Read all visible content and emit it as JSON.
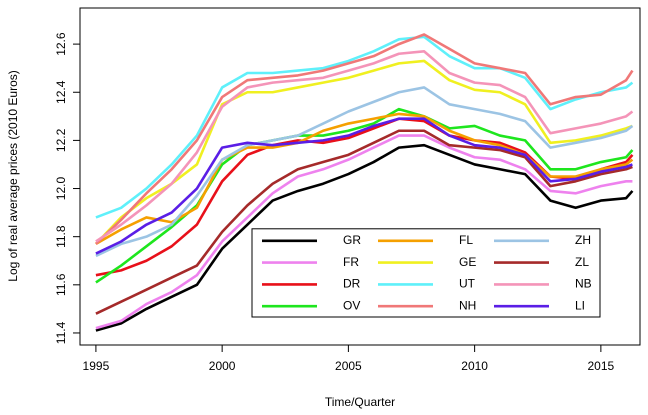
{
  "chart_data": {
    "type": "line",
    "x_label": "Time/Quarter",
    "y_label": "Log of real average prices (2010 Euros)",
    "x": [
      1995,
      1996,
      1997,
      1998,
      1999,
      2000,
      2001,
      2002,
      2003,
      2004,
      2005,
      2006,
      2007,
      2008,
      2009,
      2010,
      2011,
      2012,
      2013,
      2014,
      2015,
      2016,
      2016.25
    ],
    "series": [
      {
        "name": "GR",
        "color": "#000000",
        "values": [
          11.41,
          11.44,
          11.5,
          11.55,
          11.6,
          11.75,
          11.85,
          11.95,
          11.99,
          12.02,
          12.06,
          12.11,
          12.17,
          12.18,
          12.14,
          12.1,
          12.08,
          12.06,
          11.95,
          11.92,
          11.95,
          11.96,
          11.99
        ]
      },
      {
        "name": "FR",
        "color": "#ee82ee",
        "values": [
          11.42,
          11.45,
          11.52,
          11.57,
          11.64,
          11.78,
          11.88,
          11.98,
          12.05,
          12.08,
          12.12,
          12.17,
          12.22,
          12.22,
          12.17,
          12.13,
          12.12,
          12.08,
          11.99,
          11.98,
          12.01,
          12.03,
          12.03
        ]
      },
      {
        "name": "DR",
        "color": "#e8101a",
        "values": [
          11.64,
          11.66,
          11.7,
          11.76,
          11.85,
          12.03,
          12.14,
          12.18,
          12.2,
          12.19,
          12.21,
          12.25,
          12.29,
          12.28,
          12.22,
          12.2,
          12.19,
          12.15,
          12.05,
          12.04,
          12.08,
          12.11,
          12.14
        ]
      },
      {
        "name": "OV",
        "color": "#1ee61e",
        "values": [
          11.61,
          11.68,
          11.76,
          11.84,
          11.93,
          12.1,
          12.18,
          12.2,
          12.22,
          12.22,
          12.24,
          12.27,
          12.33,
          12.3,
          12.25,
          12.26,
          12.22,
          12.2,
          12.08,
          12.08,
          12.11,
          12.13,
          12.16
        ]
      },
      {
        "name": "FL",
        "color": "#f5a000",
        "values": [
          11.77,
          11.83,
          11.88,
          11.86,
          11.92,
          12.12,
          12.17,
          12.17,
          12.19,
          12.24,
          12.27,
          12.29,
          12.31,
          12.3,
          12.24,
          12.2,
          12.18,
          12.14,
          12.05,
          12.05,
          12.08,
          12.1,
          12.12
        ]
      },
      {
        "name": "GE",
        "color": "#f0f020",
        "values": [
          11.77,
          11.88,
          11.96,
          12.02,
          12.1,
          12.35,
          12.4,
          12.4,
          12.42,
          12.44,
          12.46,
          12.49,
          12.52,
          12.53,
          12.45,
          12.41,
          12.4,
          12.35,
          12.19,
          12.2,
          12.22,
          12.25,
          12.26
        ]
      },
      {
        "name": "UT",
        "color": "#5ff0fa",
        "values": [
          11.88,
          11.92,
          12.0,
          12.1,
          12.22,
          12.42,
          12.48,
          12.48,
          12.49,
          12.5,
          12.53,
          12.57,
          12.62,
          12.63,
          12.55,
          12.5,
          12.5,
          12.46,
          12.33,
          12.37,
          12.4,
          12.42,
          12.44
        ]
      },
      {
        "name": "NH",
        "color": "#f07878",
        "values": [
          11.77,
          11.87,
          11.98,
          12.08,
          12.2,
          12.38,
          12.45,
          12.46,
          12.47,
          12.49,
          12.52,
          12.55,
          12.6,
          12.64,
          12.58,
          12.52,
          12.5,
          12.48,
          12.35,
          12.38,
          12.39,
          12.45,
          12.49
        ]
      },
      {
        "name": "ZH",
        "color": "#9cc4e4",
        "values": [
          11.72,
          11.77,
          11.8,
          11.85,
          11.97,
          12.12,
          12.18,
          12.2,
          12.22,
          12.27,
          12.32,
          12.36,
          12.4,
          12.42,
          12.35,
          12.33,
          12.31,
          12.28,
          12.17,
          12.19,
          12.21,
          12.24,
          12.26
        ]
      },
      {
        "name": "ZL",
        "color": "#a52a2a",
        "values": [
          11.48,
          11.53,
          11.58,
          11.63,
          11.68,
          11.82,
          11.93,
          12.02,
          12.08,
          12.11,
          12.14,
          12.19,
          12.24,
          12.24,
          12.18,
          12.17,
          12.16,
          12.13,
          12.01,
          12.03,
          12.06,
          12.08,
          12.09
        ]
      },
      {
        "name": "NB",
        "color": "#f494b8",
        "values": [
          11.78,
          11.85,
          11.93,
          12.02,
          12.15,
          12.34,
          12.42,
          12.44,
          12.45,
          12.46,
          12.49,
          12.52,
          12.56,
          12.57,
          12.48,
          12.44,
          12.43,
          12.38,
          12.23,
          12.25,
          12.27,
          12.3,
          12.32
        ]
      },
      {
        "name": "LI",
        "color": "#5a1ee6",
        "values": [
          11.73,
          11.78,
          11.85,
          11.9,
          12.0,
          12.17,
          12.19,
          12.18,
          12.19,
          12.2,
          12.22,
          12.26,
          12.29,
          12.29,
          12.22,
          12.18,
          12.17,
          12.14,
          12.03,
          12.04,
          12.07,
          12.09,
          12.1
        ]
      }
    ],
    "xlim": [
      1994.37,
      2016.55
    ],
    "ylim": [
      11.35,
      12.75
    ],
    "xticks": [
      1995,
      2000,
      2005,
      2010,
      2015
    ],
    "yticks": [
      11.4,
      11.6,
      11.8,
      {
        "value": 12,
        "label": "12.0"
      },
      12.2,
      12.4,
      12.6
    ],
    "grid": false,
    "legend": "bottom-right",
    "legend_columns": 3
  }
}
